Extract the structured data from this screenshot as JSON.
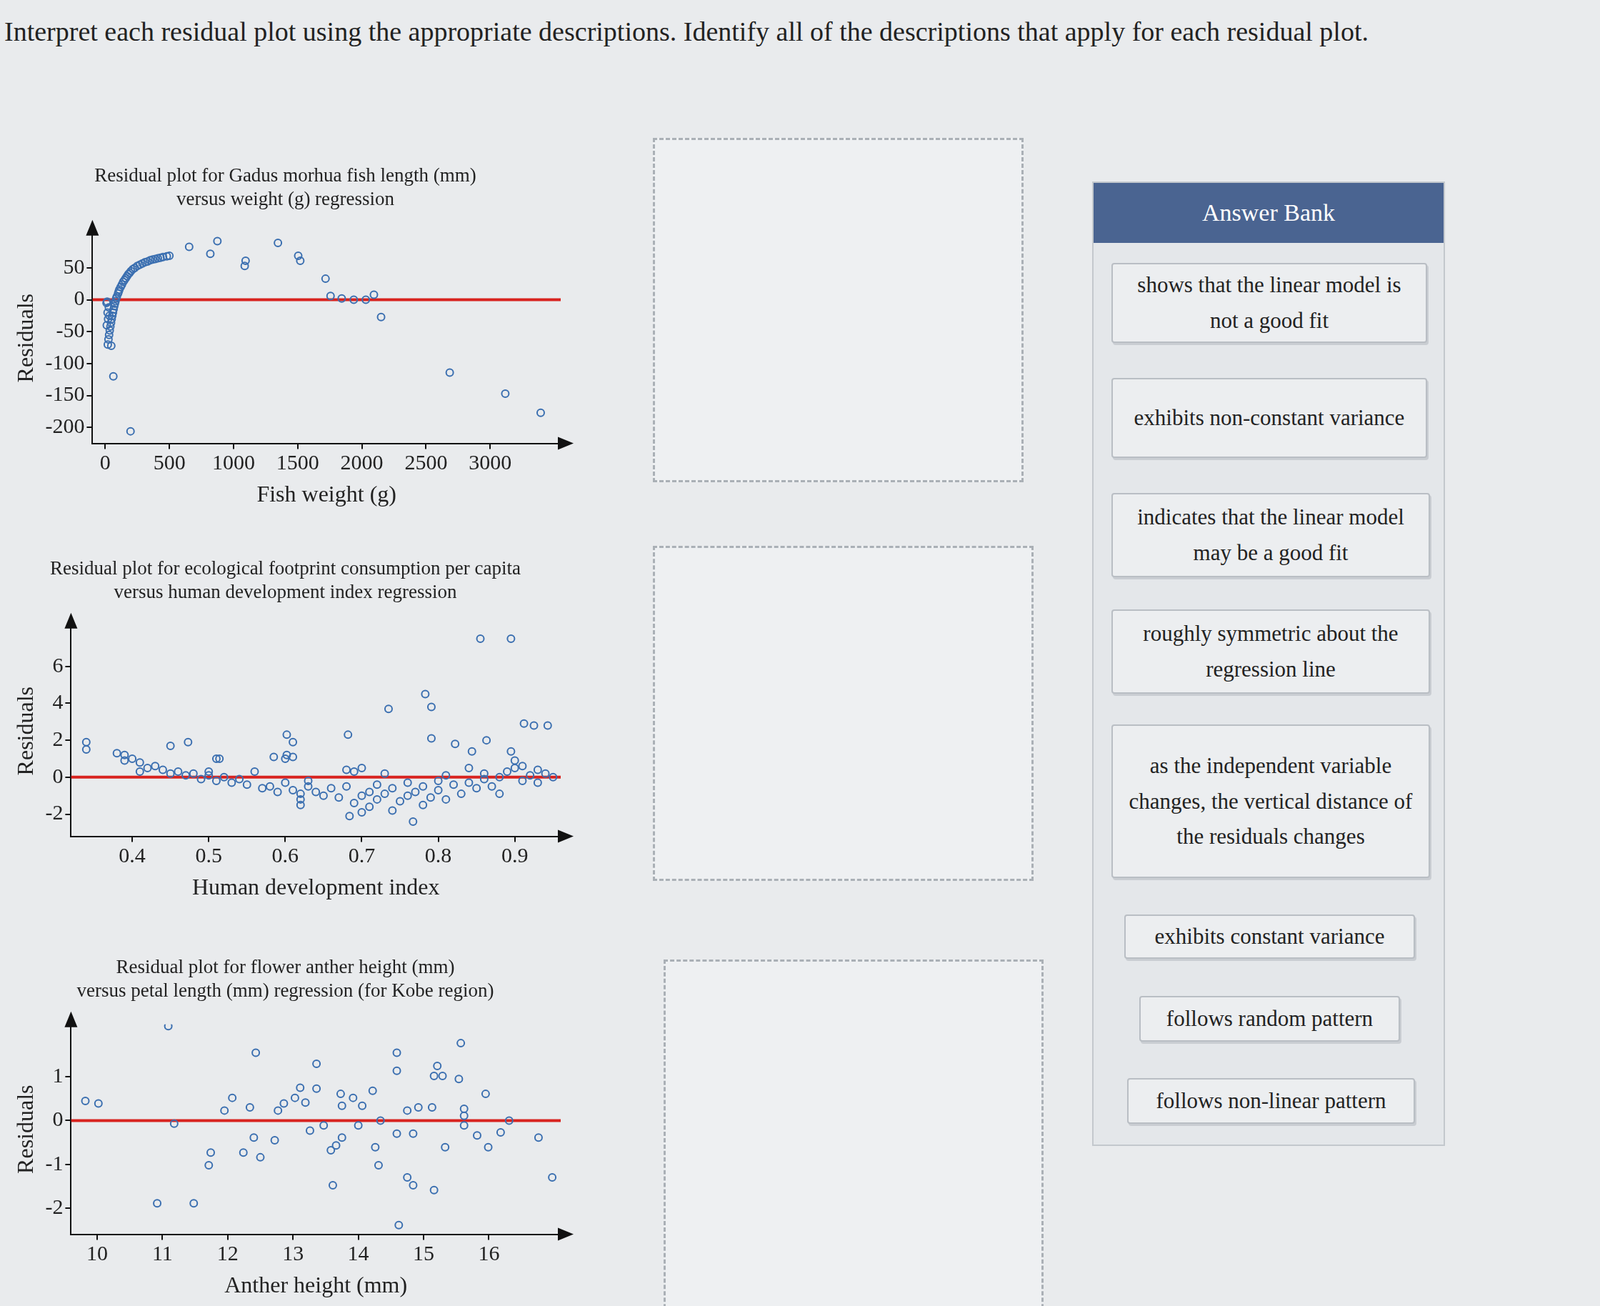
{
  "question": "Interpret each residual plot using the appropriate descriptions. Identify all of the descriptions that apply for each residual plot.",
  "chart_data": [
    {
      "type": "scatter",
      "title": [
        "Residual plot for Gadus morhua fish length (mm)",
        "versus weight (g) regression"
      ],
      "x_label": "Fish weight (g)",
      "y_label": "Residuals",
      "xlim": [
        -100,
        3550
      ],
      "ylim": [
        -225,
        105
      ],
      "xticks": [
        0,
        500,
        1000,
        1500,
        2000,
        2500,
        3000
      ],
      "yticks": [
        -200,
        -150,
        -100,
        -50,
        0,
        50
      ],
      "grid": false,
      "series": [
        {
          "type": "line",
          "color": "#d8231f",
          "line_style": "solid",
          "x": [
            -100,
            3550
          ],
          "values": [
            0,
            0
          ]
        },
        {
          "type": "scatter",
          "color": "#3b6fb0",
          "marker": "open_circle",
          "x": [
            10,
            12,
            15,
            18,
            20,
            22,
            25,
            28,
            30,
            33,
            35,
            40,
            45,
            50,
            55,
            60,
            65,
            70,
            75,
            80,
            85,
            90,
            100,
            105,
            110,
            120,
            130,
            140,
            150,
            160,
            170,
            180,
            190,
            200,
            215,
            230,
            250,
            270,
            290,
            310,
            330,
            350,
            370,
            390,
            410,
            430,
            450,
            480,
            500,
            47,
            63,
            197,
            654,
            819,
            874,
            1087,
            1094,
            1346,
            1504,
            1520,
            1717,
            1756,
            1843,
            1937,
            2031,
            2094,
            2150,
            2685,
            3118,
            3394
          ],
          "values": [
            -5,
            -40,
            -3,
            -20,
            -70,
            -30,
            -62,
            -12,
            -55,
            -25,
            -48,
            -42,
            -36,
            -30,
            -25,
            -20,
            -15,
            -10,
            -6,
            -2,
            2,
            5,
            10,
            13,
            16,
            20,
            24,
            28,
            31,
            34,
            37,
            40,
            42,
            45,
            48,
            50,
            53,
            55,
            57,
            59,
            60,
            62,
            63,
            64,
            65,
            66,
            67,
            68,
            69,
            -72,
            -120,
            -206,
            83,
            72,
            92,
            53,
            61,
            89,
            69,
            61,
            33,
            6,
            2,
            0,
            0,
            8,
            -27,
            -114,
            -147,
            -177
          ]
        }
      ]
    },
    {
      "type": "scatter",
      "title": [
        "Residual plot for ecological footprint consumption per capita",
        "versus human development index regression"
      ],
      "x_label": "Human development index",
      "y_label": "Residuals",
      "xlim": [
        0.32,
        0.96
      ],
      "ylim": [
        -3.2,
        8.2
      ],
      "xticks": [
        0.4,
        0.5,
        0.6,
        0.7,
        0.8,
        0.9
      ],
      "yticks": [
        -2,
        0,
        2,
        4,
        6
      ],
      "grid": false,
      "series": [
        {
          "type": "line",
          "color": "#d8231f",
          "line_style": "solid",
          "x": [
            0.32,
            0.96
          ],
          "values": [
            0,
            0
          ]
        },
        {
          "type": "scatter",
          "color": "#3b6fb0",
          "marker": "open_circle",
          "x": [
            0.38,
            0.39,
            0.39,
            0.4,
            0.41,
            0.42,
            0.43,
            0.41,
            0.44,
            0.45,
            0.46,
            0.47,
            0.48,
            0.49,
            0.5,
            0.5,
            0.51,
            0.52,
            0.53,
            0.54,
            0.55,
            0.45,
            0.51,
            0.56,
            0.57,
            0.58,
            0.59,
            0.6,
            0.61,
            0.62,
            0.62,
            0.63,
            0.64,
            0.65,
            0.63,
            0.6,
            0.61,
            0.61,
            0.66,
            0.67,
            0.68,
            0.69,
            0.7,
            0.68,
            0.69,
            0.7,
            0.71,
            0.71,
            0.72,
            0.73,
            0.72,
            0.74,
            0.73,
            0.75,
            0.76,
            0.76,
            0.77,
            0.78,
            0.78,
            0.79,
            0.8,
            0.8,
            0.81,
            0.82,
            0.81,
            0.83,
            0.84,
            0.84,
            0.85,
            0.86,
            0.86,
            0.87,
            0.88,
            0.88,
            0.89,
            0.9,
            0.9,
            0.91,
            0.91,
            0.92,
            0.93,
            0.93,
            0.94,
            0.95,
            0.735,
            0.783,
            0.791,
            0.855,
            0.895,
            0.912,
            0.925,
            0.943,
            0.863,
            0.844,
            0.895,
            0.822,
            0.791,
            0.602,
            0.682,
            0.585,
            0.602,
            0.514,
            0.473,
            0.34,
            0.34,
            0.767,
            0.684,
            0.7,
            0.74,
            0.62
          ],
          "values": [
            1.3,
            0.9,
            1.2,
            1.0,
            0.8,
            0.5,
            0.6,
            0.3,
            0.4,
            0.2,
            0.3,
            0.1,
            0.2,
            -0.1,
            0.1,
            0.3,
            -0.2,
            0,
            -0.3,
            -0.1,
            -0.4,
            1.7,
            1.0,
            0.3,
            -0.6,
            -0.5,
            -0.8,
            -0.3,
            -0.7,
            -0.9,
            -1.2,
            -0.5,
            -0.8,
            -1.0,
            -0.2,
            1.0,
            1.1,
            1.9,
            -0.6,
            -1.1,
            0.4,
            0.3,
            0.5,
            -0.5,
            -1.4,
            -1.0,
            -0.8,
            -1.6,
            -1.2,
            -0.9,
            -0.4,
            -0.6,
            0.2,
            -1.3,
            -1.0,
            -0.3,
            -0.8,
            -0.5,
            -1.5,
            -1.1,
            -0.2,
            -0.7,
            0.1,
            -0.4,
            -1.2,
            -0.9,
            -0.3,
            0.5,
            -0.6,
            -0.1,
            0.2,
            -0.5,
            -0.9,
            0,
            0.3,
            0.5,
            0.9,
            0.6,
            -0.2,
            0.1,
            0.4,
            -0.3,
            0.2,
            0,
            3.7,
            4.5,
            3.8,
            7.5,
            7.5,
            2.9,
            2.8,
            2.8,
            2.0,
            1.4,
            1.4,
            1.8,
            2.1,
            2.3,
            2.3,
            1.1,
            1.2,
            1.0,
            1.9,
            1.9,
            1.5,
            -2.4,
            -2.1,
            -1.9,
            -1.8,
            -1.5
          ]
        }
      ]
    },
    {
      "type": "scatter",
      "title": [
        "Residual plot for flower anther height (mm)",
        "versus petal length (mm) regression (for Kobe region)"
      ],
      "x_label": "Anther height (mm)",
      "y_label": "Residuals",
      "xlim": [
        9.6,
        17.1
      ],
      "ylim": [
        -2.6,
        2.2
      ],
      "xticks": [
        10,
        11,
        12,
        13,
        14,
        15,
        16
      ],
      "yticks": [
        -2,
        -1,
        0,
        1
      ],
      "grid": false,
      "series": [
        {
          "type": "line",
          "color": "#d8231f",
          "line_style": "solid",
          "x": [
            9.6,
            17.1
          ],
          "values": [
            0,
            0
          ]
        },
        {
          "type": "scatter",
          "color": "#3b6fb0",
          "marker": "open_circle",
          "x": [
            11.09,
            12.43,
            13.36,
            14.59,
            14.59,
            15.57,
            15.21,
            15.29,
            15.54,
            15.16,
            13.11,
            13.36,
            13.03,
            9.82,
            10.02,
            12.07,
            12.34,
            11.95,
            12.77,
            12.86,
            13.19,
            13.73,
            13.92,
            14.22,
            14.06,
            13.75,
            14.34,
            14.75,
            14.92,
            15.13,
            15.62,
            15.62,
            15.95,
            16.31,
            16.76,
            15.82,
            16.18,
            15.99,
            15.33,
            14.84,
            14.59,
            14.26,
            14.31,
            14.75,
            14.84,
            15.16,
            13.61,
            13.75,
            13.66,
            13.58,
            13.26,
            13.47,
            14.0,
            12.4,
            12.72,
            12.24,
            12.5,
            11.74,
            11.71,
            11.18,
            10.92,
            11.48,
            14.62,
            16.97,
            15.62
          ],
          "values": [
            2.16,
            1.55,
            1.3,
            1.55,
            1.14,
            1.77,
            1.25,
            1.02,
            0.95,
            1.02,
            0.75,
            0.73,
            0.52,
            0.45,
            0.39,
            0.52,
            0.3,
            0.23,
            0.23,
            0.39,
            0.41,
            0.61,
            0.52,
            0.68,
            0.34,
            0.34,
            0,
            0.23,
            0.3,
            0.3,
            0.27,
            0.11,
            0.61,
            0,
            -0.39,
            -0.34,
            -0.27,
            -0.61,
            -0.61,
            -0.3,
            -0.3,
            -0.61,
            -1.02,
            -1.3,
            -1.48,
            -1.59,
            -1.48,
            -0.39,
            -0.57,
            -0.68,
            -0.23,
            -0.11,
            -0.11,
            -0.39,
            -0.45,
            -0.73,
            -0.84,
            -0.73,
            -1.02,
            -0.07,
            -1.89,
            -1.89,
            -2.39,
            -1.3,
            -0.11
          ]
        }
      ]
    }
  ],
  "answer_bank": {
    "title": "Answer Bank",
    "items": [
      "shows that the linear model is not a good fit",
      "exhibits non-constant variance",
      "indicates that the linear model may be a good fit",
      "roughly symmetric about the regression line",
      "as the independent variable changes, the vertical distance of the residuals changes",
      "exhibits constant variance",
      "follows random pattern",
      "follows non-linear pattern"
    ]
  }
}
